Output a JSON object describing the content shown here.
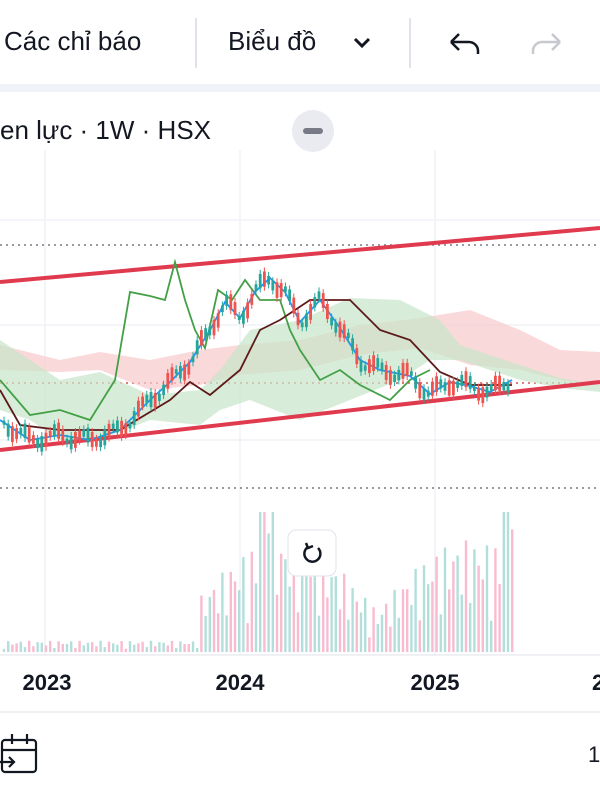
{
  "toolbar": {
    "indicators": "Các chỉ báo",
    "chart_type": "Biểu đồ"
  },
  "chart_header": {
    "title": "en lực · 1W · HSX"
  },
  "x_axis": {
    "labels": [
      "2023",
      "2024",
      "2025",
      "2"
    ]
  },
  "footer": {
    "right_text": "1"
  }
}
